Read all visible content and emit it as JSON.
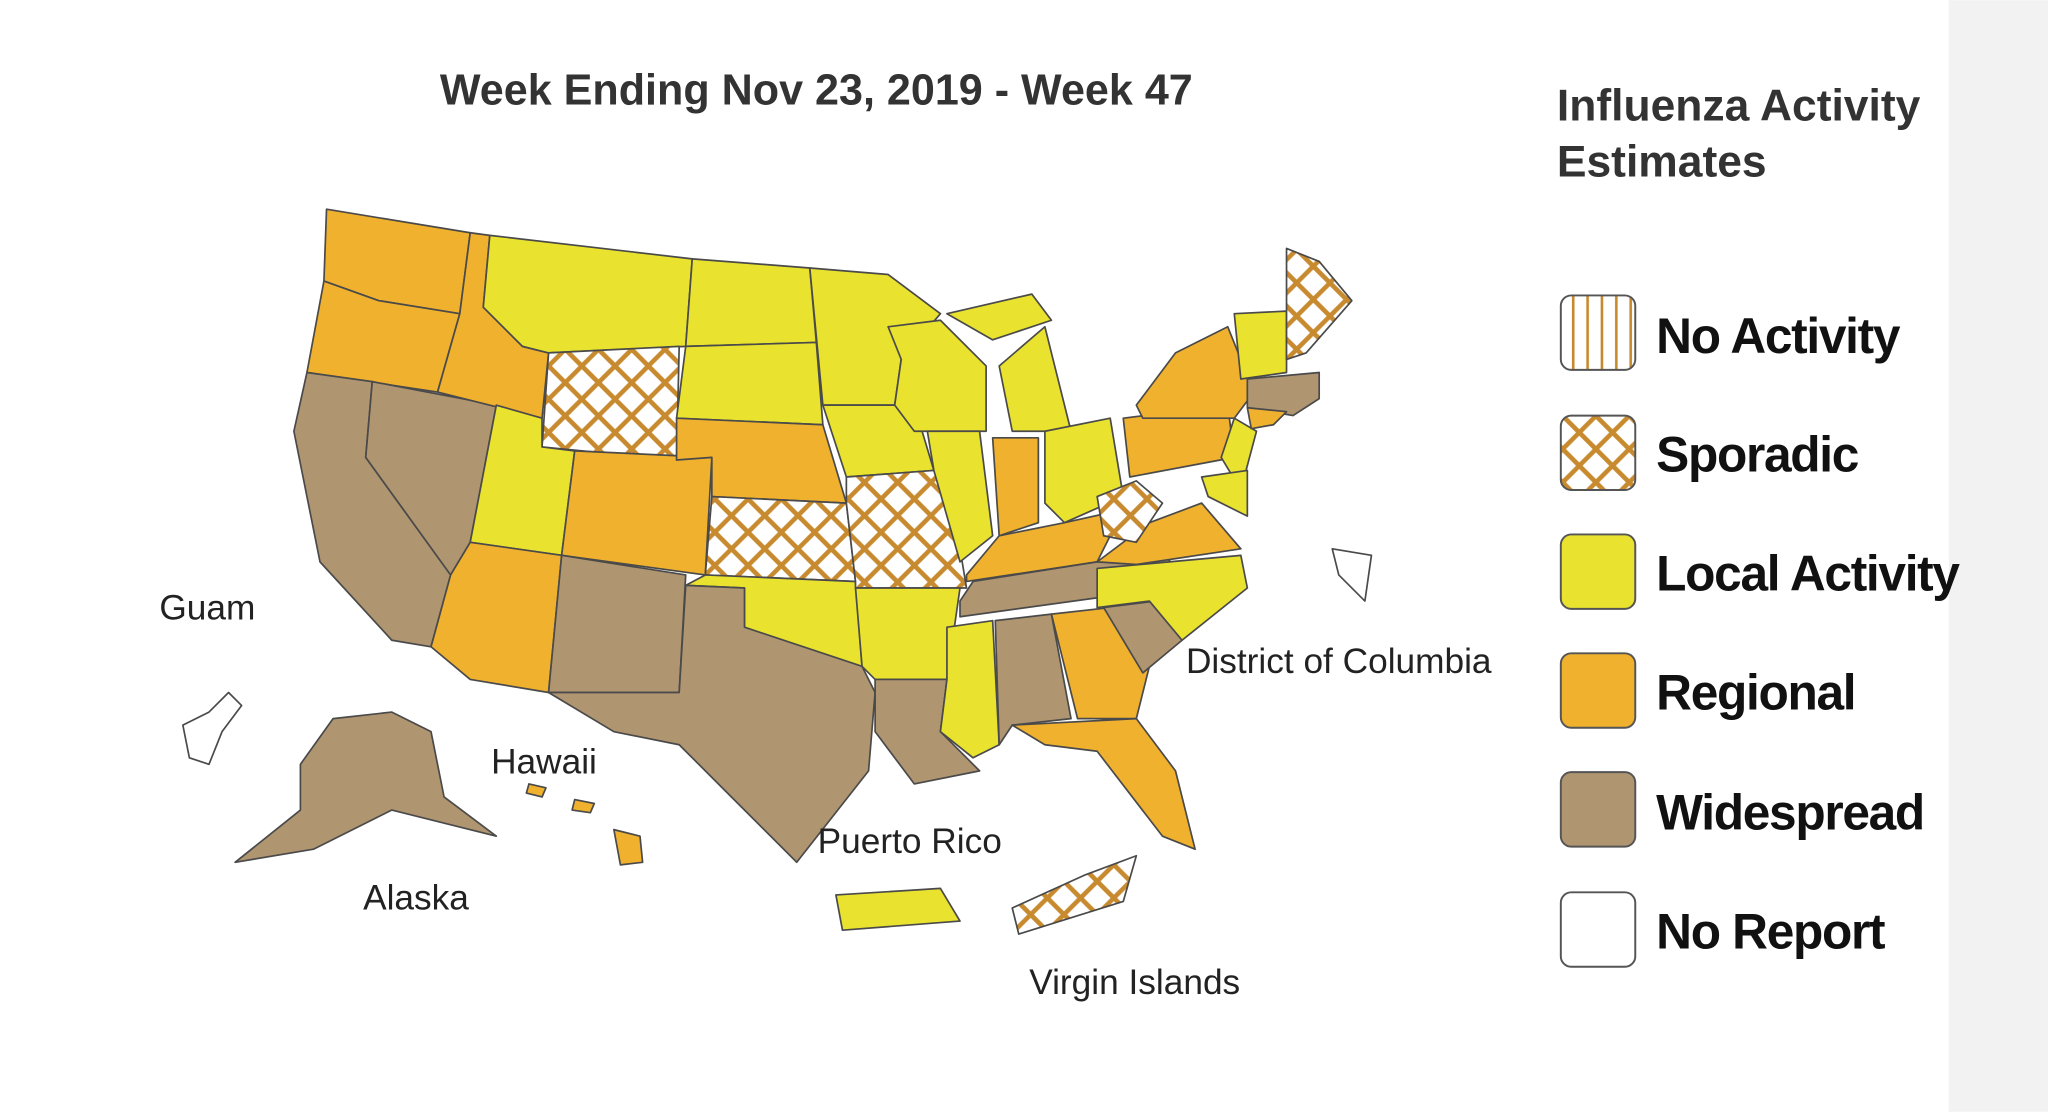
{
  "header": {
    "title": "Week Ending Nov 23, 2019 - Week 47"
  },
  "legend": {
    "title_lines": [
      "Influenza Activity",
      "Estimates"
    ],
    "items": [
      "No Activity",
      "Sporadic",
      "Local Activity",
      "Regional",
      "Widespread",
      "No Report"
    ]
  },
  "map": {
    "labels": {
      "guam": "Guam",
      "hawaii": "Hawaii",
      "alaska": "Alaska",
      "puerto_rico": "Puerto Rico",
      "virgin_islands": "Virgin Islands",
      "dc": "District of Columbia"
    }
  }
}
